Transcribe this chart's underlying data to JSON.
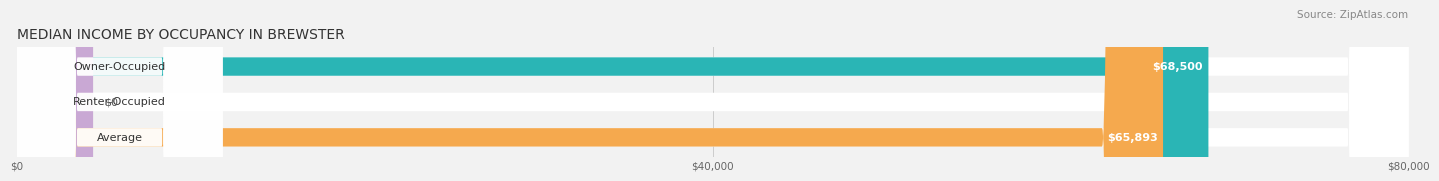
{
  "title": "MEDIAN INCOME BY OCCUPANCY IN BREWSTER",
  "source": "Source: ZipAtlas.com",
  "categories": [
    "Owner-Occupied",
    "Renter-Occupied",
    "Average"
  ],
  "values": [
    68500,
    0,
    65893
  ],
  "bar_colors": [
    "#2ab5b5",
    "#c9a8d4",
    "#f5a94e"
  ],
  "label_values": [
    "$68,500",
    "$0",
    "$65,893"
  ],
  "xlim": [
    0,
    80000
  ],
  "xticks": [
    0,
    40000,
    80000
  ],
  "xtick_labels": [
    "$0",
    "$40,000",
    "$80,000"
  ],
  "title_fontsize": 10,
  "source_fontsize": 7.5,
  "label_fontsize": 8,
  "bar_height": 0.52,
  "background_color": "#f2f2f2"
}
